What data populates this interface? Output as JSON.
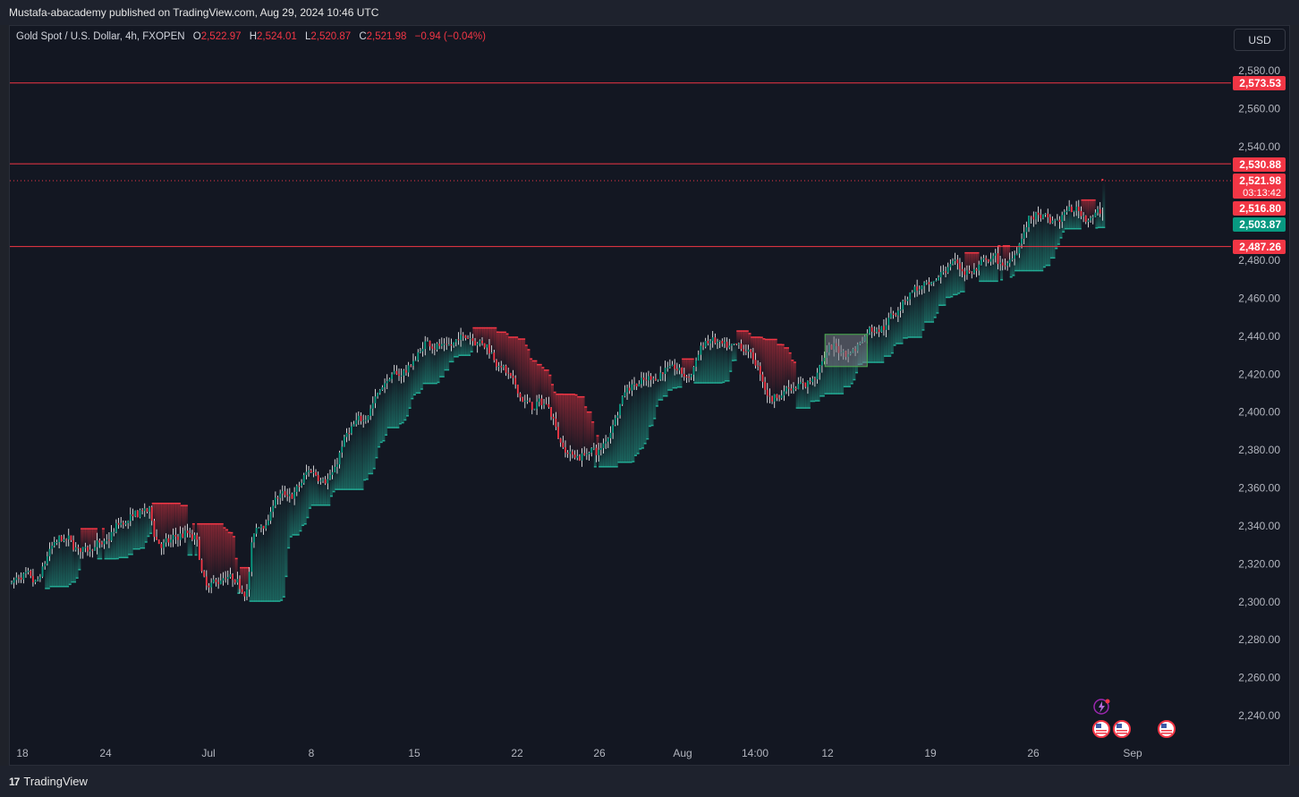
{
  "header": {
    "published": "Mustafa-abacademy published on TradingView.com, Aug 29, 2024 10:46 UTC"
  },
  "legend": {
    "symbol": "Gold Spot / U.S. Dollar, 4h, FXOPEN",
    "o_label": "O",
    "o_value": "2,522.97",
    "h_label": "H",
    "h_value": "2,524.01",
    "l_label": "L",
    "l_value": "2,520.87",
    "c_label": "C",
    "c_value": "2,521.98",
    "change": "−0.94 (−0.04%)"
  },
  "currency_button": "USD",
  "footer": {
    "brand": "TradingView",
    "logo_mark": "17"
  },
  "colors": {
    "bull": "#089981",
    "bear": "#f23645",
    "wick": "#ffffff",
    "background": "#131722",
    "level_line": "#f23645",
    "grid_text": "#b2b5be"
  },
  "icons": [
    "flash-event-icon",
    "us-flag-icon"
  ],
  "chart_data": {
    "type": "candlestick",
    "symbol": "XAUUSD",
    "interval": "4h",
    "ylim": [
      2230,
      2590
    ],
    "y_ticks": [
      "2,580.00",
      "2,560.00",
      "2,540.00",
      "2,520.00",
      "2,500.00",
      "2,480.00",
      "2,460.00",
      "2,440.00",
      "2,420.00",
      "2,400.00",
      "2,380.00",
      "2,360.00",
      "2,340.00",
      "2,320.00",
      "2,300.00",
      "2,280.00",
      "2,260.00",
      "2,240.00"
    ],
    "y_tick_values": [
      2580,
      2560,
      2540,
      2520,
      2500,
      2480,
      2460,
      2440,
      2420,
      2400,
      2380,
      2360,
      2340,
      2320,
      2300,
      2280,
      2260,
      2240
    ],
    "x_ticks": [
      "18",
      "24",
      "Jul",
      "8",
      "15",
      "22",
      "26",
      "Aug",
      "14:00",
      "12",
      "19",
      "26",
      "Sep"
    ],
    "horizontal_levels": [
      {
        "value": 2573.53,
        "label": "2,573.53"
      },
      {
        "value": 2530.88,
        "label": "2,530.88"
      },
      {
        "value": 2487.26,
        "label": "2,487.26"
      }
    ],
    "price_tags": [
      {
        "label": "2,573.53",
        "value": 2573.53,
        "color": "#f23645"
      },
      {
        "label": "2,530.88",
        "value": 2530.88,
        "color": "#f23645"
      },
      {
        "label": "2,521.98",
        "value": 2521.98,
        "color": "#f23645",
        "countdown": "03:13:42"
      },
      {
        "label": "2,516.80",
        "value": 2516.8,
        "color": "#f23645"
      },
      {
        "label": "2,503.87",
        "value": 2503.87,
        "color": "#089981"
      },
      {
        "label": "2,487.26",
        "value": 2487.26,
        "color": "#f23645"
      }
    ],
    "last_price": 2521.98,
    "trend_path": [
      [
        0,
        2310
      ],
      [
        10,
        2310
      ],
      [
        15,
        2330
      ],
      [
        35,
        2330
      ],
      [
        38,
        2325
      ],
      [
        45,
        2345
      ],
      [
        58,
        2345
      ],
      [
        60,
        2333
      ],
      [
        78,
        2333
      ],
      [
        80,
        2310
      ],
      [
        99,
        2310
      ],
      [
        101,
        2340
      ],
      [
        108,
        2340
      ],
      [
        110,
        2358
      ],
      [
        120,
        2358
      ],
      [
        125,
        2368
      ],
      [
        135,
        2368
      ],
      [
        138,
        2380
      ],
      [
        145,
        2395
      ],
      [
        150,
        2405
      ],
      [
        158,
        2415
      ],
      [
        165,
        2425
      ],
      [
        175,
        2435
      ],
      [
        190,
        2438
      ],
      [
        200,
        2438
      ],
      [
        206,
        2420
      ],
      [
        212,
        2410
      ],
      [
        226,
        2400
      ],
      [
        230,
        2385
      ],
      [
        240,
        2375
      ],
      [
        247,
        2380
      ],
      [
        253,
        2400
      ],
      [
        258,
        2410
      ],
      [
        268,
        2420
      ],
      [
        285,
        2422
      ],
      [
        290,
        2435
      ],
      [
        305,
        2435
      ],
      [
        312,
        2425
      ],
      [
        318,
        2410
      ],
      [
        328,
        2410
      ],
      [
        336,
        2420
      ],
      [
        343,
        2430
      ],
      [
        356,
        2437
      ],
      [
        366,
        2445
      ],
      [
        370,
        2455
      ],
      [
        376,
        2460
      ],
      [
        386,
        2468
      ],
      [
        392,
        2475
      ],
      [
        418,
        2478
      ],
      [
        422,
        2490
      ],
      [
        428,
        2500
      ],
      [
        438,
        2503
      ],
      [
        448,
        2504
      ],
      [
        455,
        2506
      ]
    ],
    "candles_synthesized": true,
    "zone_box": {
      "x_from": 343,
      "x_to": 360,
      "y_from": 2424,
      "y_to": 2441
    }
  }
}
